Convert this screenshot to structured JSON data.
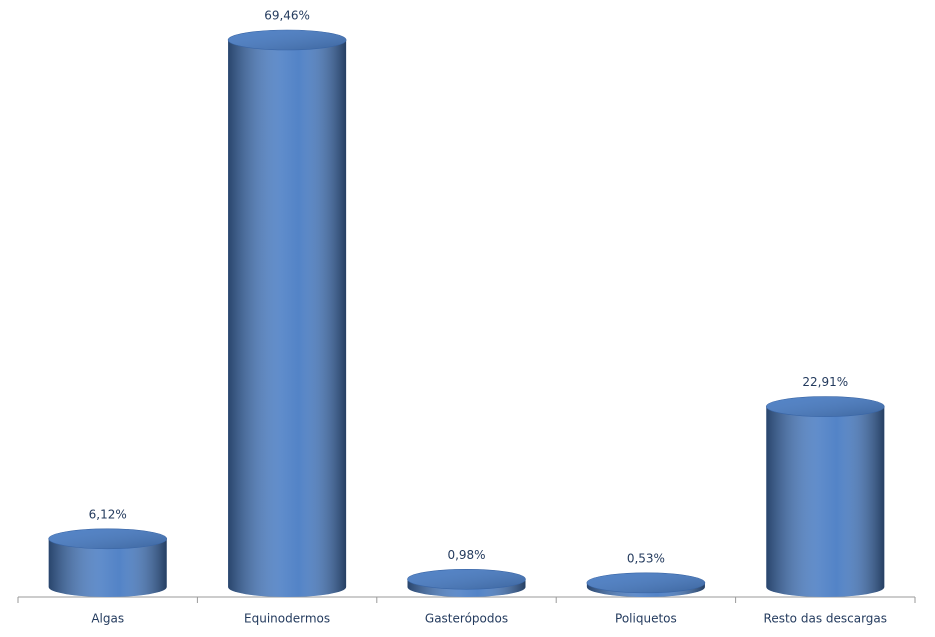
{
  "chart_data": {
    "type": "bar",
    "categories": [
      "Algas",
      "Equinodermos",
      "Gasterópodos",
      "Poliquetos",
      "Resto das descargas"
    ],
    "values": [
      6.12,
      69.46,
      0.98,
      0.53,
      22.91
    ],
    "value_labels": [
      "6,12%",
      "69,46%",
      "0,98%",
      "0,53%",
      "22,91%"
    ],
    "color": "#4a7dc4"
  }
}
